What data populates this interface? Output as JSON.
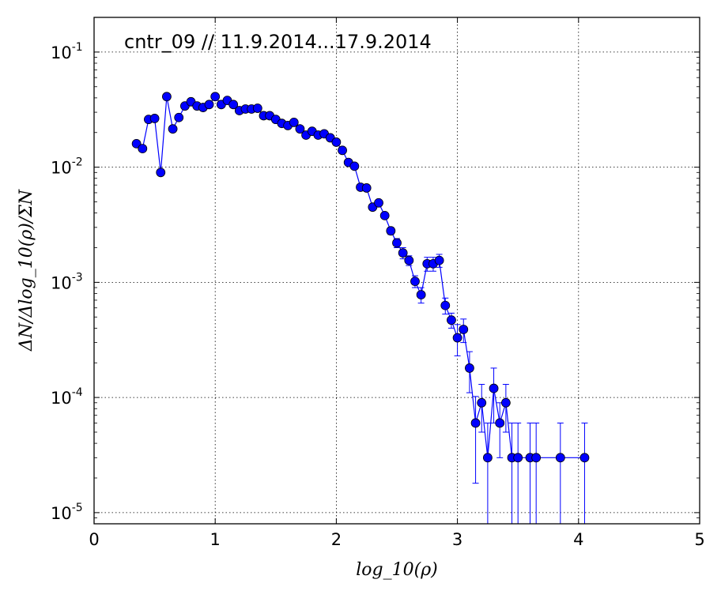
{
  "chart_data": {
    "type": "scatter",
    "title": "cntr_09 // 11.9.2014...17.9.2014",
    "xlabel": "log_10(ρ)",
    "ylabel": "ΔN/Δlog_10(ρ)/ΣN",
    "xlim": [
      0,
      5
    ],
    "ylim": [
      8e-06,
      0.2
    ],
    "yscale": "log",
    "grid": true,
    "x_ticks": [
      "0",
      "1",
      "2",
      "3",
      "4",
      "5"
    ],
    "y_ticks": [
      {
        "base": "10",
        "exp": "-1"
      },
      {
        "base": "10",
        "exp": "-2"
      },
      {
        "base": "10",
        "exp": "-3"
      },
      {
        "base": "10",
        "exp": "-4"
      },
      {
        "base": "10",
        "exp": "-5"
      }
    ],
    "series_color": "#0000ff",
    "series": [
      {
        "x": [
          0.35,
          0.4,
          0.45,
          0.5,
          0.55,
          0.6,
          0.65,
          0.7,
          0.75,
          0.8,
          0.85,
          0.9,
          0.95,
          1.0,
          1.05,
          1.1,
          1.15,
          1.2,
          1.25,
          1.3,
          1.35,
          1.4,
          1.45,
          1.5,
          1.55,
          1.6,
          1.65,
          1.7,
          1.75,
          1.8,
          1.85,
          1.9,
          1.95,
          2.0,
          2.05,
          2.1,
          2.15,
          2.2,
          2.25,
          2.3,
          2.35,
          2.4,
          2.45,
          2.5,
          2.55,
          2.6,
          2.65,
          2.7,
          2.75,
          2.8,
          2.85,
          2.9,
          2.95,
          3.0,
          3.05,
          3.1,
          3.15,
          3.2,
          3.25,
          3.3,
          3.35,
          3.4,
          3.45,
          3.5,
          3.6,
          3.65,
          3.85,
          4.05
        ],
        "y": [
          0.016,
          0.0145,
          0.026,
          0.0265,
          0.009,
          0.041,
          0.0215,
          0.027,
          0.034,
          0.037,
          0.034,
          0.033,
          0.035,
          0.041,
          0.035,
          0.038,
          0.035,
          0.031,
          0.032,
          0.032,
          0.0325,
          0.028,
          0.028,
          0.026,
          0.024,
          0.023,
          0.0245,
          0.0215,
          0.019,
          0.0205,
          0.019,
          0.0195,
          0.018,
          0.0165,
          0.014,
          0.011,
          0.0102,
          0.0067,
          0.0066,
          0.0045,
          0.0049,
          0.0038,
          0.0028,
          0.0022,
          0.0018,
          0.00155,
          0.00102,
          0.00078,
          0.00145,
          0.00145,
          0.00155,
          0.00063,
          0.00047,
          0.00033,
          0.00039,
          0.00018,
          6e-05,
          9e-05,
          3e-05,
          0.00012,
          6e-05,
          9e-05,
          3e-05,
          3e-05,
          3e-05,
          3e-05,
          3e-05,
          3e-05
        ],
        "err": [
          0,
          0,
          0,
          0,
          0,
          0,
          0,
          0,
          0,
          0,
          0,
          0,
          0,
          0,
          0,
          0,
          0,
          0,
          0,
          0,
          0,
          0,
          0,
          0,
          0,
          0,
          0,
          0,
          0,
          0,
          0,
          0,
          0,
          0,
          0,
          0,
          0,
          0,
          0,
          0,
          0,
          0,
          0.0002,
          0.0002,
          0.0002,
          0.00015,
          0.00012,
          0.00012,
          0.0002,
          0.0002,
          0.0002,
          0.0001,
          7e-05,
          0.0001,
          9e-05,
          7e-05,
          4.2e-05,
          4e-05,
          3e-05,
          6e-05,
          3e-05,
          4e-05,
          3e-05,
          3e-05,
          3e-05,
          3e-05,
          3e-05,
          3e-05
        ]
      }
    ]
  }
}
